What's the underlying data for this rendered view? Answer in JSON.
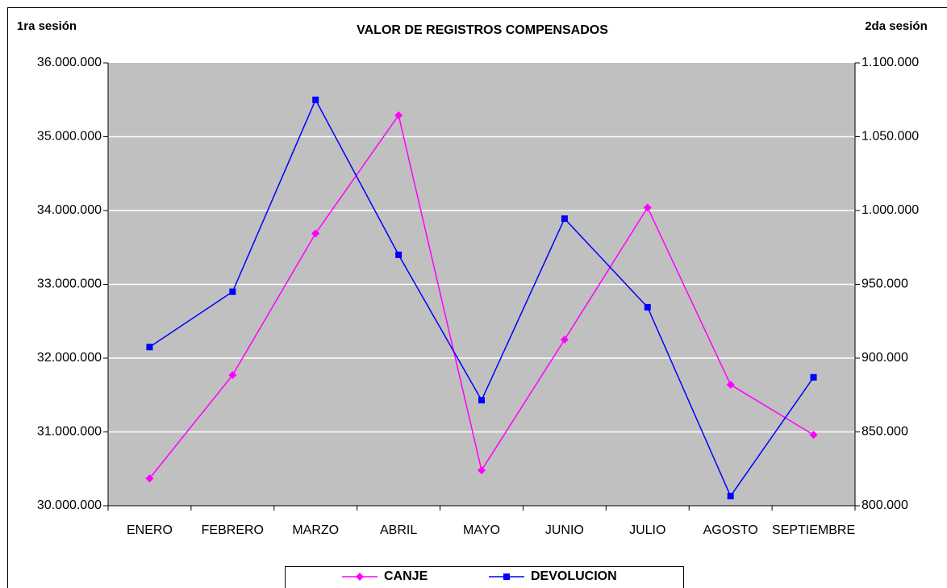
{
  "chart_data": {
    "type": "line",
    "title": "VALOR DE REGISTROS COMPENSADOS",
    "y_label": "1ra sesión",
    "y2_label": "2da sesión",
    "categories": [
      "ENERO",
      "FEBRERO",
      "MARZO",
      "ABRIL",
      "MAYO",
      "JUNIO",
      "JULIO",
      "AGOSTO",
      "SEPTIEMBRE"
    ],
    "series": [
      {
        "name": "CANJE",
        "color": "#ff00ff",
        "marker": "diamond",
        "axis": "y",
        "values": [
          30370000,
          31770000,
          33690000,
          35290000,
          30480000,
          32250000,
          34040000,
          31640000,
          30960000
        ]
      },
      {
        "name": "DEVOLUCION",
        "color": "#0000ff",
        "marker": "square",
        "axis": "y2",
        "values": [
          907500,
          945000,
          1075000,
          970000,
          871500,
          994500,
          934500,
          806500,
          887000
        ]
      }
    ],
    "ylim": [
      30000000,
      36000000
    ],
    "yticks": [
      {
        "value": 30000000,
        "label": "30.000.000"
      },
      {
        "value": 31000000,
        "label": "31.000.000"
      },
      {
        "value": 32000000,
        "label": "32.000.000"
      },
      {
        "value": 33000000,
        "label": "33.000.000"
      },
      {
        "value": 34000000,
        "label": "34.000.000"
      },
      {
        "value": 35000000,
        "label": "35.000.000"
      },
      {
        "value": 36000000,
        "label": "36.000.000"
      }
    ],
    "y2lim": [
      800000,
      1100000
    ],
    "y2ticks": [
      {
        "value": 800000,
        "label": "800.000"
      },
      {
        "value": 850000,
        "label": "850.000"
      },
      {
        "value": 900000,
        "label": "900.000"
      },
      {
        "value": 950000,
        "label": "950.000"
      },
      {
        "value": 1000000,
        "label": "1.000.000"
      },
      {
        "value": 1050000,
        "label": "1.050.000"
      },
      {
        "value": 1100000,
        "label": "1.100.000"
      }
    ],
    "grid": true,
    "legend": "bottom"
  }
}
